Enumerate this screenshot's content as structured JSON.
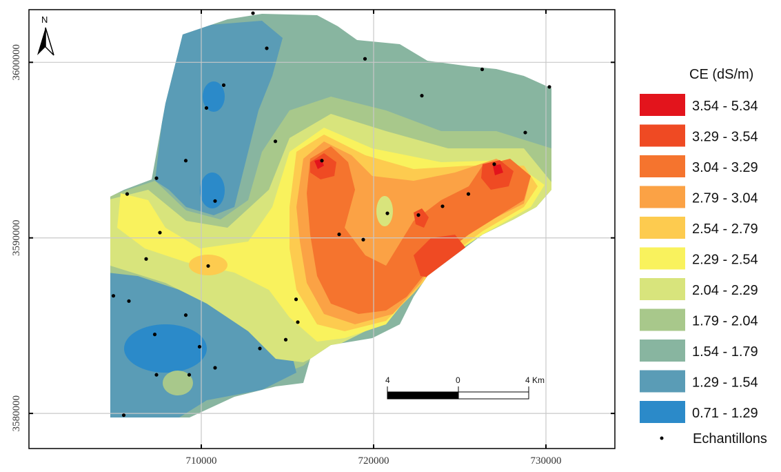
{
  "map": {
    "north_label": "N",
    "x_ticks": [
      "710000",
      "720000",
      "730000"
    ],
    "y_ticks": [
      "3600000",
      "3590000",
      "3580000"
    ],
    "x_range": [
      700000,
      734000
    ],
    "y_range": [
      3578000,
      3603000
    ],
    "grid": true
  },
  "legend": {
    "title": "CE (dS/m)",
    "classes": [
      {
        "label": "3.54 - 5.34",
        "color": "#e3141c"
      },
      {
        "label": "3.29 - 3.54",
        "color": "#ef4a23"
      },
      {
        "label": "3.04 - 3.29",
        "color": "#f5742e"
      },
      {
        "label": "2.79 - 3.04",
        "color": "#fba245"
      },
      {
        "label": "2.54 - 2.79",
        "color": "#fdcb4f"
      },
      {
        "label": "2.29 - 2.54",
        "color": "#f9f25d"
      },
      {
        "label": "2.04 - 2.29",
        "color": "#d8e47c"
      },
      {
        "label": "1.79 - 2.04",
        "color": "#a8c88b"
      },
      {
        "label": "1.54 - 1.79",
        "color": "#88b5a0"
      },
      {
        "label": "1.29 - 1.54",
        "color": "#5a9cb6"
      },
      {
        "label": "0.71 - 1.29",
        "color": "#2b8ac9"
      }
    ],
    "samples_label": "Echantillons"
  },
  "scale_bar": {
    "labels": [
      "4",
      "0",
      "4 Km"
    ]
  },
  "samples": [
    [
      713000,
      3602800
    ],
    [
      713800,
      3600800
    ],
    [
      719500,
      3600200
    ],
    [
      726300,
      3599600
    ],
    [
      730200,
      3598600
    ],
    [
      711300,
      3598700
    ],
    [
      710300,
      3597400
    ],
    [
      722800,
      3598100
    ],
    [
      728800,
      3596000
    ],
    [
      714300,
      3595500
    ],
    [
      709100,
      3594400
    ],
    [
      717000,
      3594400
    ],
    [
      727000,
      3594200
    ],
    [
      707400,
      3593400
    ],
    [
      705700,
      3592500
    ],
    [
      710800,
      3592100
    ],
    [
      725500,
      3592500
    ],
    [
      724000,
      3591800
    ],
    [
      720800,
      3591400
    ],
    [
      722600,
      3591300
    ],
    [
      707600,
      3590300
    ],
    [
      718000,
      3590200
    ],
    [
      719400,
      3589900
    ],
    [
      706800,
      3588800
    ],
    [
      710400,
      3588400
    ],
    [
      704900,
      3586700
    ],
    [
      705800,
      3586400
    ],
    [
      715500,
      3586500
    ],
    [
      709100,
      3585600
    ],
    [
      715600,
      3585200
    ],
    [
      707300,
      3584500
    ],
    [
      714900,
      3584200
    ],
    [
      709900,
      3583800
    ],
    [
      713400,
      3583700
    ],
    [
      710800,
      3582600
    ],
    [
      707400,
      3582200
    ],
    [
      709300,
      3582200
    ],
    [
      705500,
      3579900
    ]
  ]
}
